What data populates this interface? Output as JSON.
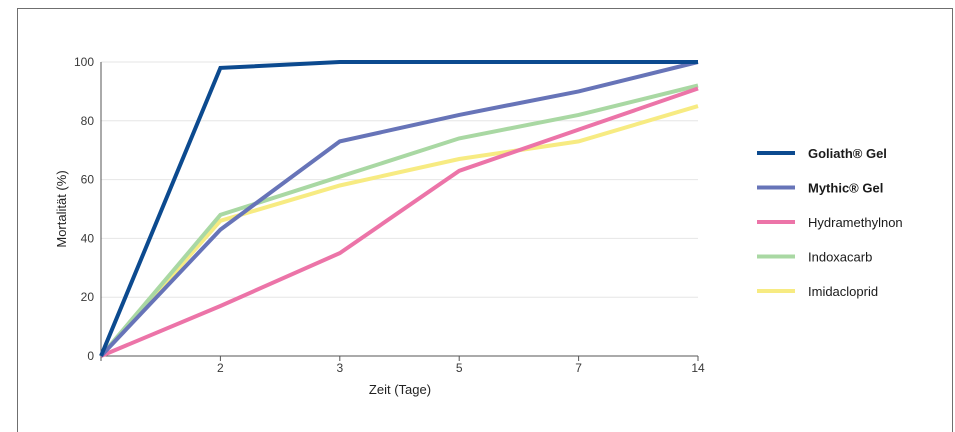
{
  "chart_data": {
    "type": "line",
    "xlabel": "Zeit (Tage)",
    "ylabel": "Mortalität (%)",
    "ylim": [
      0,
      100
    ],
    "y_ticks": [
      "0",
      "20",
      "40",
      "60",
      "80",
      "100"
    ],
    "categories": [
      "0",
      "2",
      "3",
      "5",
      "7",
      "14"
    ],
    "x_tick_labels": [
      "",
      "2",
      "3",
      "5",
      "7",
      "14"
    ],
    "grid": true,
    "legend_position": "right",
    "series": [
      {
        "name": "Goliath® Gel",
        "bold": true,
        "color": "#0c4a8f",
        "values": [
          0,
          98,
          100,
          100,
          100,
          100
        ]
      },
      {
        "name": "Mythic® Gel",
        "bold": true,
        "color": "#6774b8",
        "values": [
          0,
          43,
          73,
          82,
          90,
          100
        ]
      },
      {
        "name": "Hydramethylnon",
        "bold": false,
        "color": "#ec74a8",
        "values": [
          0,
          17,
          35,
          63,
          77,
          91
        ]
      },
      {
        "name": "Indoxacarb",
        "bold": false,
        "color": "#a9d8a3",
        "values": [
          0,
          48,
          61,
          74,
          82,
          92
        ]
      },
      {
        "name": "Imidacloprid",
        "bold": false,
        "color": "#f7eb82",
        "values": [
          0,
          46,
          58,
          67,
          73,
          85
        ]
      }
    ]
  }
}
